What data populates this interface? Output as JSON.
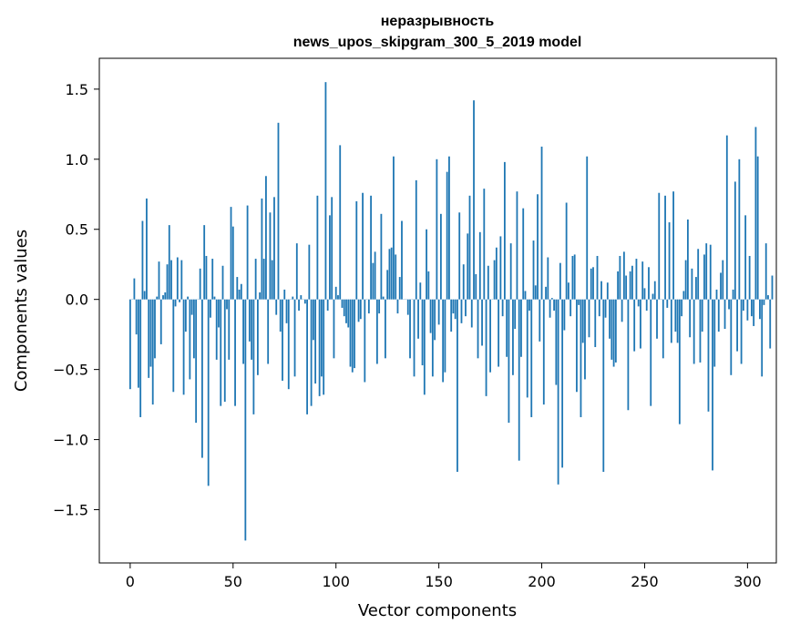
{
  "chart_data": {
    "type": "bar",
    "title": "неразрывность",
    "subtitle": "news_upos_skipgram_300_5_2019 model",
    "xlabel": "Vector components",
    "ylabel": "Components values",
    "xlim": [
      -15,
      314
    ],
    "ylim": [
      -1.88,
      1.72
    ],
    "xticks": [
      0,
      50,
      100,
      150,
      200,
      250,
      300
    ],
    "xtick_labels": [
      "0",
      "50",
      "100",
      "150",
      "200",
      "250",
      "300"
    ],
    "yticks": [
      -1.5,
      -1.0,
      -0.5,
      0.0,
      0.5,
      1.0,
      1.5
    ],
    "ytick_labels": [
      "−1.5",
      "−1.0",
      "−0.5",
      "0.0",
      "0.5",
      "1.0",
      "1.5"
    ],
    "bar_color": "#1f77b4",
    "series": [
      {
        "name": "components",
        "x_start": 0,
        "values": [
          -0.64,
          0.0,
          0.15,
          -0.25,
          -0.63,
          -0.84,
          0.56,
          0.06,
          0.72,
          -0.56,
          -0.48,
          -0.75,
          -0.42,
          0.02,
          0.27,
          -0.32,
          0.03,
          0.05,
          0.25,
          0.53,
          0.28,
          -0.66,
          -0.05,
          0.3,
          -0.02,
          0.28,
          -0.68,
          -0.23,
          0.02,
          -0.57,
          -0.11,
          -0.42,
          -0.88,
          0.0,
          0.22,
          -1.13,
          0.53,
          0.31,
          -1.33,
          -0.13,
          0.29,
          0.02,
          -0.43,
          -0.2,
          -0.76,
          0.24,
          -0.73,
          -0.07,
          -0.43,
          0.66,
          0.52,
          -0.76,
          0.16,
          0.07,
          0.11,
          -0.46,
          -1.72,
          0.67,
          -0.3,
          -0.43,
          -0.82,
          0.29,
          -0.54,
          0.05,
          0.72,
          0.29,
          0.88,
          -0.46,
          0.62,
          0.28,
          0.73,
          -0.11,
          1.26,
          -0.23,
          -0.58,
          0.07,
          -0.17,
          -0.64,
          0.0,
          0.02,
          -0.55,
          0.4,
          -0.08,
          0.03,
          0.0,
          -0.03,
          -0.82,
          0.39,
          -0.76,
          -0.29,
          -0.6,
          0.74,
          -0.69,
          -0.55,
          -0.68,
          1.55,
          -0.08,
          0.6,
          0.73,
          -0.42,
          0.09,
          0.03,
          1.1,
          -0.06,
          -0.12,
          -0.17,
          -0.2,
          -0.48,
          -0.52,
          -0.49,
          0.7,
          -0.16,
          -0.14,
          0.76,
          -0.59,
          0.0,
          -0.1,
          0.74,
          0.26,
          0.34,
          -0.46,
          -0.1,
          0.61,
          0.02,
          -0.42,
          0.21,
          0.36,
          0.37,
          1.02,
          0.32,
          -0.1,
          0.16,
          0.56,
          0.0,
          0.0,
          -0.11,
          -0.42,
          0.0,
          -0.55,
          0.85,
          -0.28,
          0.12,
          -0.47,
          -0.68,
          0.5,
          0.2,
          -0.24,
          -0.55,
          -0.29,
          1.0,
          -0.18,
          0.61,
          -0.59,
          -0.52,
          0.91,
          1.02,
          -0.23,
          -0.1,
          -0.14,
          -1.23,
          0.62,
          -0.17,
          0.25,
          -0.12,
          0.47,
          0.74,
          -0.2,
          1.42,
          0.18,
          -0.42,
          0.48,
          -0.33,
          0.79,
          -0.69,
          0.24,
          -0.52,
          0.0,
          0.28,
          0.37,
          -0.48,
          0.45,
          -0.12,
          0.98,
          -0.41,
          -0.88,
          0.4,
          -0.54,
          -0.21,
          0.77,
          -1.15,
          -0.41,
          0.65,
          0.06,
          -0.7,
          -0.08,
          -0.84,
          0.42,
          0.1,
          0.75,
          -0.3,
          1.09,
          -0.75,
          0.09,
          0.3,
          -0.13,
          0.01,
          -0.08,
          -0.61,
          -1.32,
          0.26,
          -1.2,
          -0.22,
          0.69,
          0.12,
          -0.12,
          0.31,
          0.32,
          -0.66,
          -0.04,
          -0.84,
          -0.31,
          -0.57,
          1.02,
          -0.27,
          0.22,
          0.23,
          -0.34,
          0.31,
          -0.12,
          0.13,
          -1.23,
          -0.13,
          0.12,
          -0.28,
          -0.43,
          -0.48,
          -0.45,
          0.2,
          0.31,
          -0.16,
          0.34,
          0.17,
          -0.79,
          0.2,
          0.24,
          -0.37,
          0.29,
          -0.05,
          -0.35,
          0.27,
          0.08,
          -0.08,
          0.23,
          -0.76,
          0.04,
          0.13,
          -0.28,
          0.76,
          0.0,
          -0.42,
          0.74,
          -0.06,
          0.55,
          -0.31,
          0.77,
          -0.23,
          -0.31,
          -0.89,
          -0.12,
          0.06,
          0.28,
          0.57,
          -0.27,
          0.22,
          -0.46,
          0.16,
          0.36,
          -0.45,
          -0.23,
          0.32,
          0.4,
          -0.8,
          0.39,
          -1.22,
          -0.48,
          0.07,
          -0.23,
          0.19,
          0.28,
          -0.21,
          1.17,
          -0.07,
          -0.54,
          0.07,
          0.84,
          -0.37,
          1.0,
          -0.46,
          -0.08,
          0.6,
          -0.15,
          0.31,
          -0.12,
          -0.19,
          1.23,
          1.02,
          -0.14,
          -0.55,
          -0.04,
          0.4,
          0.03,
          -0.35,
          0.17
        ]
      }
    ]
  }
}
